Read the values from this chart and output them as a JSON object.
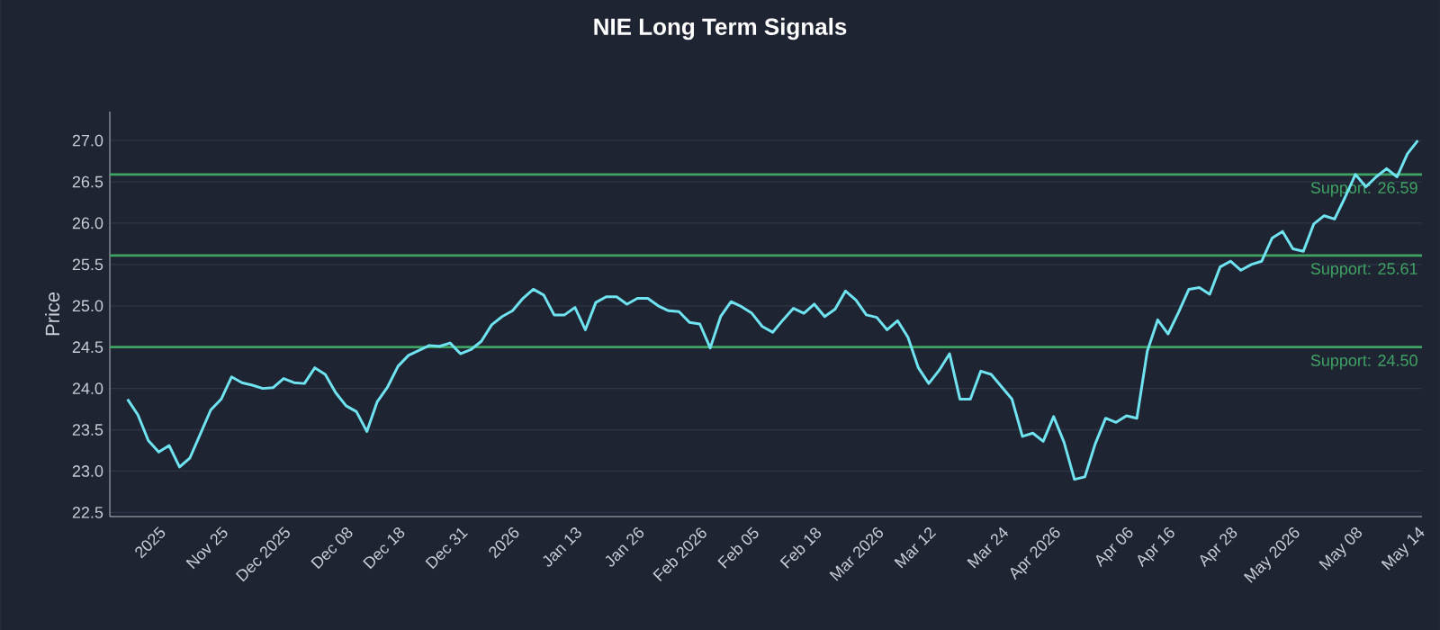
{
  "chart_data": {
    "type": "line",
    "title": "NIE Long Term Signals",
    "ylabel": "Price",
    "categories": [
      null,
      null,
      null,
      "2025",
      null,
      null,
      null,
      null,
      null,
      "Nov 25",
      null,
      null,
      null,
      null,
      null,
      "Dec 2025",
      null,
      null,
      null,
      null,
      null,
      "Dec 08",
      null,
      null,
      null,
      null,
      "Dec 18",
      null,
      null,
      null,
      null,
      null,
      "Dec 31",
      null,
      null,
      null,
      null,
      "2026",
      null,
      null,
      null,
      null,
      null,
      "Jan 13",
      null,
      null,
      null,
      null,
      null,
      "Jan 26",
      null,
      null,
      null,
      null,
      null,
      "Feb 2026",
      null,
      null,
      null,
      null,
      "Feb 05",
      null,
      null,
      null,
      null,
      null,
      "Feb 18",
      null,
      null,
      null,
      null,
      null,
      "Mar 2026",
      null,
      null,
      null,
      null,
      "Mar 12",
      null,
      null,
      null,
      null,
      null,
      null,
      "Mar 24",
      null,
      null,
      null,
      null,
      "Apr 2026",
      null,
      null,
      null,
      null,
      null,
      null,
      "Apr 06",
      null,
      null,
      null,
      "Apr 16",
      null,
      null,
      null,
      null,
      null,
      "Apr 28",
      null,
      null,
      null,
      null,
      null,
      "May 2026",
      null,
      null,
      null,
      null,
      null,
      "May 08",
      null,
      null,
      null,
      null,
      null,
      "May 14"
    ],
    "series": [
      {
        "color": "#6fe3f0",
        "values": [
          23.87,
          23.68,
          23.37,
          23.23,
          23.31,
          23.05,
          23.16,
          23.45,
          23.74,
          23.87,
          24.14,
          24.07,
          24.04,
          24.0,
          24.01,
          24.12,
          24.07,
          24.06,
          24.25,
          24.17,
          23.95,
          23.79,
          23.72,
          23.48,
          23.84,
          24.02,
          24.27,
          24.4,
          24.46,
          24.52,
          24.51,
          24.55,
          24.42,
          24.47,
          24.57,
          24.77,
          24.87,
          24.94,
          25.09,
          25.2,
          25.13,
          24.89,
          24.89,
          24.98,
          24.71,
          25.04,
          25.11,
          25.11,
          25.02,
          25.09,
          25.09,
          25.0,
          24.94,
          24.93,
          24.8,
          24.78,
          24.49,
          24.87,
          25.05,
          24.99,
          24.91,
          24.75,
          24.68,
          24.83,
          24.97,
          24.91,
          25.02,
          24.87,
          24.96,
          25.18,
          25.07,
          24.89,
          24.86,
          24.71,
          24.82,
          24.62,
          24.25,
          24.06,
          24.22,
          24.42,
          23.87,
          23.87,
          24.21,
          24.17,
          24.02,
          23.87,
          23.42,
          23.46,
          23.36,
          23.66,
          23.35,
          22.9,
          22.93,
          23.33,
          23.64,
          23.59,
          23.67,
          23.64,
          24.45,
          24.83,
          24.66,
          24.92,
          25.2,
          25.22,
          25.14,
          25.47,
          25.54,
          25.43,
          25.5,
          25.54,
          25.82,
          25.9,
          25.69,
          25.66,
          25.99,
          26.09,
          26.05,
          26.31,
          26.59,
          26.44,
          26.56,
          26.66,
          26.56,
          26.84,
          27.0
        ]
      }
    ],
    "ylim": [
      22.45,
      27.35
    ],
    "yticks": [
      22.5,
      {
        "value": 23,
        "label": "23.0"
      },
      23.5,
      {
        "value": 24,
        "label": "24.0"
      },
      24.5,
      {
        "value": 25,
        "label": "25.0"
      },
      25.5,
      {
        "value": 26,
        "label": "26.0"
      },
      26.5,
      {
        "value": 27,
        "label": "27.0"
      }
    ],
    "ref_lines": [
      {
        "axis": "y",
        "value": 26.59,
        "label": "Support: 26.59",
        "color": "#3fa463"
      },
      {
        "axis": "y",
        "value": 25.61,
        "label": "Support: 25.61",
        "color": "#3fa463"
      },
      {
        "axis": "y",
        "value": 24.5,
        "label": "Support: 24.50",
        "color": "#3fa463"
      }
    ],
    "grid": "y",
    "line_style": "solid",
    "marker": "none"
  }
}
